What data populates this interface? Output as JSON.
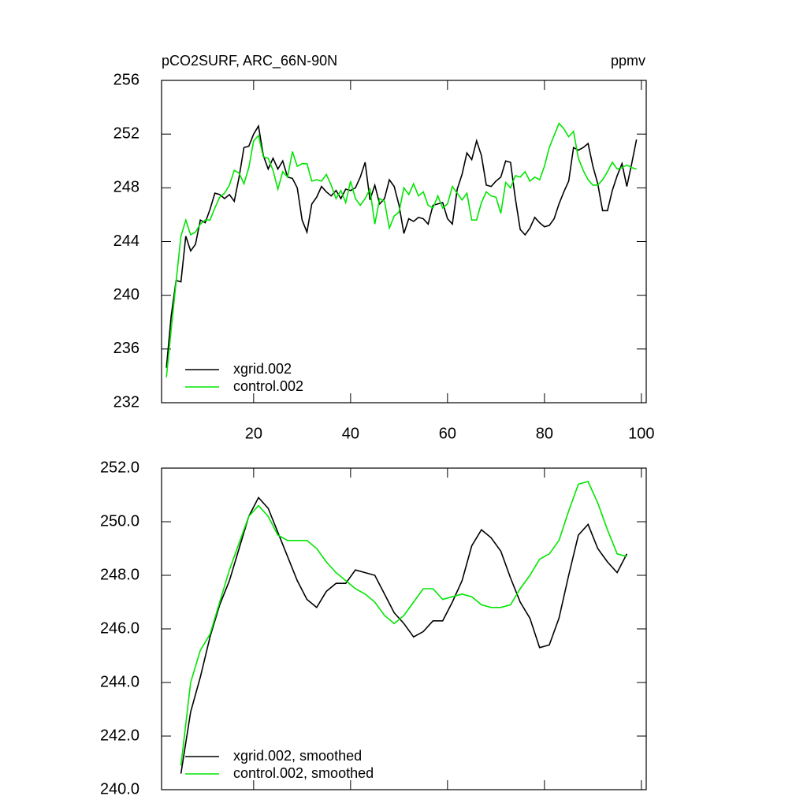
{
  "chart_data": [
    {
      "type": "line",
      "title": "pCO2SURF, ARC_66N-90N",
      "units": "ppmv",
      "x": [
        2,
        3,
        4,
        5,
        6,
        7,
        8,
        9,
        10,
        11,
        12,
        13,
        14,
        15,
        16,
        17,
        18,
        19,
        20,
        21,
        22,
        23,
        24,
        25,
        26,
        27,
        28,
        29,
        30,
        31,
        32,
        33,
        34,
        35,
        36,
        37,
        38,
        39,
        40,
        41,
        42,
        43,
        44,
        45,
        46,
        47,
        48,
        49,
        50,
        51,
        52,
        53,
        54,
        55,
        56,
        57,
        58,
        59,
        60,
        61,
        62,
        63,
        64,
        65,
        66,
        67,
        68,
        69,
        70,
        71,
        72,
        73,
        74,
        75,
        76,
        77,
        78,
        79,
        80,
        81,
        82,
        83,
        84,
        85,
        86,
        87,
        88,
        89,
        90,
        91,
        92,
        93,
        94,
        95,
        96,
        97,
        98,
        99
      ],
      "series": [
        {
          "name": "xgrid.002",
          "color": "#000000",
          "values": [
            234.6,
            238.5,
            241.1,
            241.0,
            244.4,
            243.3,
            243.8,
            245.6,
            245.4,
            246.4,
            247.6,
            247.5,
            247.2,
            247.5,
            247.0,
            248.8,
            251.0,
            251.1,
            252.0,
            252.6,
            250.4,
            249.4,
            250.2,
            249.4,
            250.0,
            248.8,
            248.7,
            248.0,
            245.6,
            244.7,
            246.8,
            247.3,
            248.1,
            247.7,
            247.4,
            247.8,
            247.2,
            247.9,
            247.8,
            248.0,
            248.8,
            249.9,
            247.1,
            248.2,
            246.8,
            247.2,
            248.6,
            248.1,
            246.7,
            244.6,
            245.7,
            245.5,
            245.8,
            245.7,
            245.3,
            246.7,
            246.8,
            246.9,
            245.7,
            245.3,
            247.9,
            249.0,
            250.6,
            250.1,
            251.5,
            250.4,
            248.2,
            248.1,
            248.5,
            248.8,
            250.0,
            249.9,
            247.2,
            244.9,
            244.5,
            245.0,
            245.8,
            245.4,
            245.1,
            245.2,
            245.7,
            246.8,
            247.7,
            248.5,
            251.0,
            250.8,
            251.0,
            251.3,
            249.6,
            248.3,
            246.3,
            246.3,
            247.8,
            248.9,
            249.8,
            248.1,
            249.8,
            251.6
          ]
        },
        {
          "name": "control.002",
          "color": "#00e600",
          "values": [
            233.9,
            237.5,
            241.0,
            244.4,
            245.6,
            244.5,
            244.7,
            245.3,
            245.6,
            245.6,
            246.5,
            247.3,
            247.6,
            248.2,
            249.3,
            249.1,
            248.3,
            249.5,
            251.5,
            251.9,
            250.3,
            250.2,
            249.3,
            247.9,
            249.2,
            248.8,
            250.7,
            249.6,
            249.8,
            249.8,
            248.5,
            248.6,
            248.5,
            249.0,
            248.2,
            247.2,
            247.8,
            246.9,
            248.5,
            247.2,
            246.7,
            247.2,
            247.9,
            245.3,
            247.2,
            247.0,
            245.0,
            245.9,
            246.2,
            248.0,
            247.5,
            248.3,
            247.4,
            247.7,
            246.7,
            246.5,
            247.4,
            246.5,
            246.8,
            248.1,
            247.6,
            247.1,
            247.6,
            245.6,
            245.6,
            246.9,
            247.7,
            247.4,
            247.3,
            246.1,
            248.4,
            248.0,
            248.9,
            248.8,
            249.2,
            248.5,
            248.8,
            248.6,
            249.6,
            251.0,
            251.9,
            252.8,
            252.4,
            251.8,
            252.2,
            250.2,
            249.3,
            248.6,
            248.2,
            248.2,
            248.6,
            249.2,
            249.9,
            249.4,
            249.5,
            249.7,
            249.5,
            249.4
          ]
        }
      ],
      "xlim": [
        1,
        101
      ],
      "xticks": [
        20,
        40,
        60,
        80,
        100
      ],
      "ylim": [
        232,
        256
      ],
      "yticks": [
        232,
        236,
        240,
        244,
        248,
        252,
        256
      ]
    },
    {
      "type": "line",
      "x": [
        5,
        7,
        9,
        11,
        13,
        15,
        17,
        19,
        21,
        23,
        25,
        27,
        29,
        31,
        33,
        35,
        37,
        39,
        41,
        43,
        45,
        47,
        49,
        51,
        53,
        55,
        57,
        59,
        61,
        63,
        65,
        67,
        69,
        71,
        73,
        75,
        77,
        79,
        81,
        83,
        85,
        87,
        89,
        91,
        93,
        95,
        97
      ],
      "series": [
        {
          "name": "xgrid.002, smoothed",
          "color": "#000000",
          "values": [
            240.6,
            242.9,
            244.2,
            245.7,
            246.9,
            247.8,
            249.0,
            250.2,
            250.9,
            250.5,
            249.6,
            248.7,
            247.8,
            247.1,
            246.8,
            247.4,
            247.7,
            247.7,
            248.2,
            248.1,
            248.0,
            247.3,
            246.6,
            246.2,
            245.7,
            245.9,
            246.3,
            246.3,
            247.0,
            247.8,
            249.1,
            249.7,
            249.4,
            248.9,
            247.9,
            247.0,
            246.4,
            245.3,
            245.4,
            246.4,
            248.0,
            249.5,
            249.9,
            249.0,
            248.5,
            248.1,
            248.8
          ]
        },
        {
          "name": "control.002, smoothed",
          "color": "#00e600",
          "values": [
            240.9,
            244.0,
            245.2,
            245.8,
            247.0,
            248.2,
            249.2,
            250.2,
            250.6,
            250.2,
            249.5,
            249.3,
            249.3,
            249.3,
            249.0,
            248.5,
            248.1,
            247.8,
            247.5,
            247.3,
            247.0,
            246.5,
            246.2,
            246.5,
            247.0,
            247.5,
            247.5,
            247.1,
            247.2,
            247.3,
            247.2,
            246.9,
            246.8,
            246.8,
            246.9,
            247.5,
            248.0,
            248.6,
            248.8,
            249.3,
            250.4,
            251.4,
            251.5,
            250.7,
            249.7,
            248.8,
            248.7
          ]
        }
      ],
      "xlim": [
        1,
        101
      ],
      "xticks": [
        20,
        40,
        60,
        80,
        100
      ],
      "ylim": [
        240,
        252
      ],
      "yticks": [
        {
          "value": 240,
          "label": "240.0"
        },
        {
          "value": 242,
          "label": "242.0"
        },
        {
          "value": 244,
          "label": "244.0"
        },
        {
          "value": 246,
          "label": "246.0"
        },
        {
          "value": 248,
          "label": "248.0"
        },
        {
          "value": 250,
          "label": "250.0"
        },
        {
          "value": 252,
          "label": "252.0"
        }
      ]
    }
  ]
}
